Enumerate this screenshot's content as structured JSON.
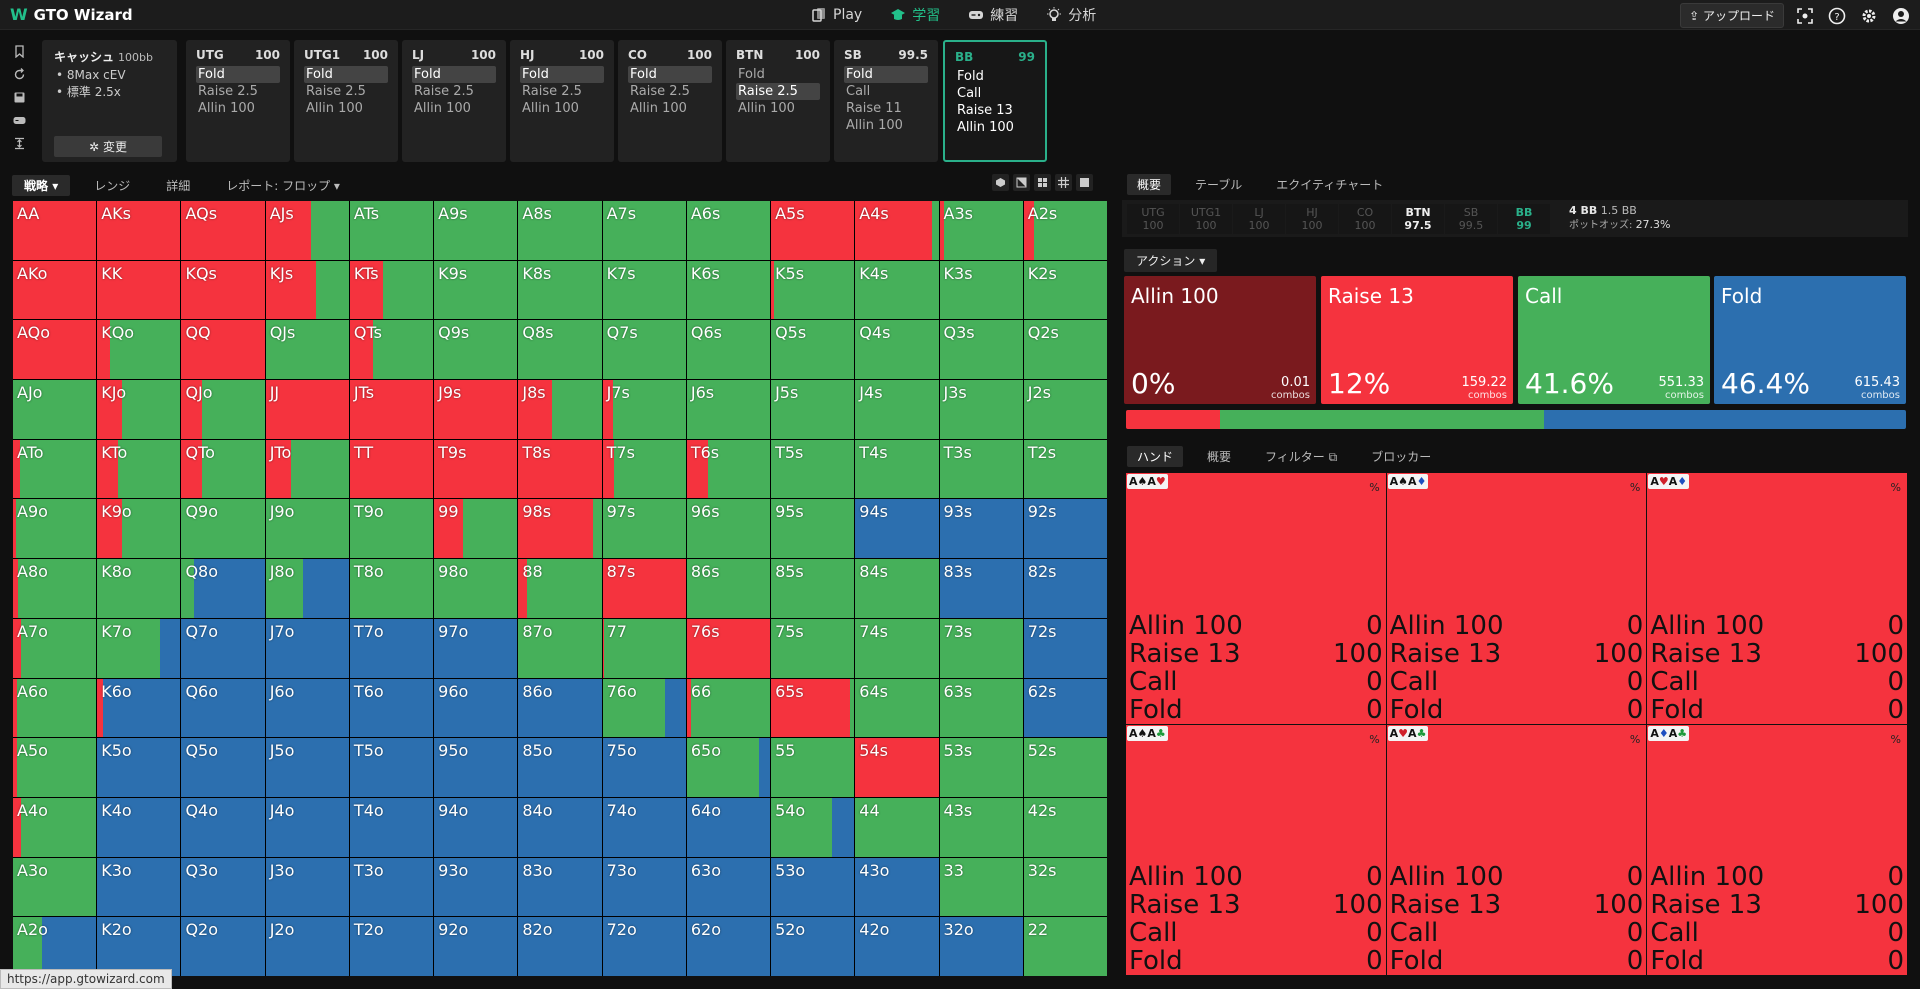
{
  "topbar": {
    "app_name": "GTO Wizard",
    "nav": [
      "Play",
      "学習",
      "練習",
      "分析"
    ],
    "upload_label": "アップロード"
  },
  "config": {
    "title": "キャッシュ",
    "stack": "100bb",
    "items": [
      "8Max cEV",
      "標準 2.5x"
    ],
    "change_label": "変更"
  },
  "positions": [
    {
      "name": "UTG",
      "stack": "100",
      "actions": [
        "Fold",
        "Raise 2.5",
        "Allin 100"
      ],
      "selected": 0
    },
    {
      "name": "UTG1",
      "stack": "100",
      "actions": [
        "Fold",
        "Raise 2.5",
        "Allin 100"
      ],
      "selected": 0
    },
    {
      "name": "LJ",
      "stack": "100",
      "actions": [
        "Fold",
        "Raise 2.5",
        "Allin 100"
      ],
      "selected": 0
    },
    {
      "name": "HJ",
      "stack": "100",
      "actions": [
        "Fold",
        "Raise 2.5",
        "Allin 100"
      ],
      "selected": 0
    },
    {
      "name": "CO",
      "stack": "100",
      "actions": [
        "Fold",
        "Raise 2.5",
        "Allin 100"
      ],
      "selected": 0
    },
    {
      "name": "BTN",
      "stack": "100",
      "actions": [
        "Fold",
        "Raise 2.5",
        "Allin 100"
      ],
      "selected": 1
    },
    {
      "name": "SB",
      "stack": "99.5",
      "actions": [
        "Fold",
        "Call",
        "Raise 11",
        "Allin 100"
      ],
      "selected": 0
    },
    {
      "name": "BB",
      "stack": "99",
      "actions": [
        "Fold",
        "Call",
        "Raise 13",
        "Allin 100"
      ],
      "selected": -1
    }
  ],
  "left_tabs": [
    "戦略",
    "レンジ",
    "詳細",
    "レポート: フロップ"
  ],
  "colors": {
    "raise": "#f5333e",
    "call": "#46b05a",
    "fold": "#2c6faf",
    "allin": "#7a1a1e"
  },
  "hands": [
    [
      "AA",
      "AKs",
      "AQs",
      "AJs",
      "ATs",
      "A9s",
      "A8s",
      "A7s",
      "A6s",
      "A5s",
      "A4s",
      "A3s",
      "A2s"
    ],
    [
      "AKo",
      "KK",
      "KQs",
      "KJs",
      "KTs",
      "K9s",
      "K8s",
      "K7s",
      "K6s",
      "K5s",
      "K4s",
      "K3s",
      "K2s"
    ],
    [
      "AQo",
      "KQo",
      "QQ",
      "QJs",
      "QTs",
      "Q9s",
      "Q8s",
      "Q7s",
      "Q6s",
      "Q5s",
      "Q4s",
      "Q3s",
      "Q2s"
    ],
    [
      "AJo",
      "KJo",
      "QJo",
      "JJ",
      "JTs",
      "J9s",
      "J8s",
      "J7s",
      "J6s",
      "J5s",
      "J4s",
      "J3s",
      "J2s"
    ],
    [
      "ATo",
      "KTo",
      "QTo",
      "JTo",
      "TT",
      "T9s",
      "T8s",
      "T7s",
      "T6s",
      "T5s",
      "T4s",
      "T3s",
      "T2s"
    ],
    [
      "A9o",
      "K9o",
      "Q9o",
      "J9o",
      "T9o",
      "99",
      "98s",
      "97s",
      "96s",
      "95s",
      "94s",
      "93s",
      "92s"
    ],
    [
      "A8o",
      "K8o",
      "Q8o",
      "J8o",
      "T8o",
      "98o",
      "88",
      "87s",
      "86s",
      "85s",
      "84s",
      "83s",
      "82s"
    ],
    [
      "A7o",
      "K7o",
      "Q7o",
      "J7o",
      "T7o",
      "97o",
      "87o",
      "77",
      "76s",
      "75s",
      "74s",
      "73s",
      "72s"
    ],
    [
      "A6o",
      "K6o",
      "Q6o",
      "J6o",
      "T6o",
      "96o",
      "86o",
      "76o",
      "66",
      "65s",
      "64s",
      "63s",
      "62s"
    ],
    [
      "A5o",
      "K5o",
      "Q5o",
      "J5o",
      "T5o",
      "95o",
      "85o",
      "75o",
      "65o",
      "55",
      "54s",
      "53s",
      "52s"
    ],
    [
      "A4o",
      "K4o",
      "Q4o",
      "J4o",
      "T4o",
      "94o",
      "84o",
      "74o",
      "64o",
      "54o",
      "44",
      "43s",
      "42s"
    ],
    [
      "A3o",
      "K3o",
      "Q3o",
      "J3o",
      "T3o",
      "93o",
      "83o",
      "73o",
      "63o",
      "53o",
      "43o",
      "33",
      "32s"
    ],
    [
      "A2o",
      "K2o",
      "Q2o",
      "J2o",
      "T2o",
      "92o",
      "82o",
      "72o",
      "62o",
      "52o",
      "42o",
      "32o",
      "22"
    ]
  ],
  "strategy": [
    [
      [
        100,
        0,
        0
      ],
      [
        100,
        0,
        0
      ],
      [
        100,
        0,
        0
      ],
      [
        55,
        45,
        0
      ],
      [
        0,
        100,
        0
      ],
      [
        0,
        100,
        0
      ],
      [
        0,
        100,
        0
      ],
      [
        0,
        100,
        0
      ],
      [
        0,
        100,
        0
      ],
      [
        100,
        0,
        0
      ],
      [
        92,
        8,
        0
      ],
      [
        5,
        95,
        0
      ],
      [
        12,
        88,
        0
      ]
    ],
    [
      [
        100,
        0,
        0
      ],
      [
        100,
        0,
        0
      ],
      [
        100,
        0,
        0
      ],
      [
        60,
        40,
        0
      ],
      [
        40,
        60,
        0
      ],
      [
        0,
        100,
        0
      ],
      [
        0,
        100,
        0
      ],
      [
        0,
        100,
        0
      ],
      [
        0,
        100,
        0
      ],
      [
        3,
        97,
        0
      ],
      [
        0,
        100,
        0
      ],
      [
        0,
        100,
        0
      ],
      [
        0,
        100,
        0
      ]
    ],
    [
      [
        100,
        0,
        0
      ],
      [
        15,
        85,
        0
      ],
      [
        100,
        0,
        0
      ],
      [
        0,
        100,
        0
      ],
      [
        28,
        72,
        0
      ],
      [
        0,
        100,
        0
      ],
      [
        0,
        100,
        0
      ],
      [
        0,
        100,
        0
      ],
      [
        0,
        100,
        0
      ],
      [
        0,
        100,
        0
      ],
      [
        0,
        100,
        0
      ],
      [
        0,
        100,
        0
      ],
      [
        0,
        100,
        0
      ]
    ],
    [
      [
        0,
        100,
        0
      ],
      [
        30,
        70,
        0
      ],
      [
        25,
        75,
        0
      ],
      [
        100,
        0,
        0
      ],
      [
        100,
        0,
        0
      ],
      [
        100,
        0,
        0
      ],
      [
        40,
        60,
        0
      ],
      [
        12,
        88,
        0
      ],
      [
        0,
        100,
        0
      ],
      [
        0,
        100,
        0
      ],
      [
        0,
        100,
        0
      ],
      [
        0,
        100,
        0
      ],
      [
        0,
        100,
        0
      ]
    ],
    [
      [
        8,
        92,
        0
      ],
      [
        25,
        75,
        0
      ],
      [
        25,
        75,
        0
      ],
      [
        30,
        70,
        0
      ],
      [
        100,
        0,
        0
      ],
      [
        100,
        0,
        0
      ],
      [
        100,
        0,
        0
      ],
      [
        14,
        86,
        0
      ],
      [
        26,
        74,
        0
      ],
      [
        0,
        100,
        0
      ],
      [
        0,
        100,
        0
      ],
      [
        0,
        100,
        0
      ],
      [
        0,
        100,
        0
      ]
    ],
    [
      [
        4,
        96,
        0
      ],
      [
        30,
        70,
        0
      ],
      [
        0,
        100,
        0
      ],
      [
        0,
        100,
        0
      ],
      [
        0,
        100,
        0
      ],
      [
        35,
        65,
        0
      ],
      [
        90,
        10,
        0
      ],
      [
        0,
        100,
        0
      ],
      [
        0,
        100,
        0
      ],
      [
        0,
        100,
        0
      ],
      [
        0,
        0,
        100
      ],
      [
        0,
        0,
        100
      ],
      [
        0,
        0,
        100
      ]
    ],
    [
      [
        6,
        94,
        0
      ],
      [
        0,
        100,
        0
      ],
      [
        0,
        15,
        85
      ],
      [
        0,
        45,
        55
      ],
      [
        0,
        100,
        0
      ],
      [
        0,
        100,
        0
      ],
      [
        10,
        90,
        0
      ],
      [
        100,
        0,
        0
      ],
      [
        0,
        100,
        0
      ],
      [
        0,
        100,
        0
      ],
      [
        0,
        100,
        0
      ],
      [
        0,
        0,
        100
      ],
      [
        0,
        0,
        100
      ]
    ],
    [
      [
        10,
        90,
        0
      ],
      [
        0,
        75,
        25
      ],
      [
        0,
        0,
        100
      ],
      [
        0,
        0,
        100
      ],
      [
        0,
        0,
        100
      ],
      [
        0,
        0,
        100
      ],
      [
        0,
        100,
        0
      ],
      [
        2,
        98,
        0
      ],
      [
        100,
        0,
        0
      ],
      [
        0,
        100,
        0
      ],
      [
        0,
        100,
        0
      ],
      [
        0,
        100,
        0
      ],
      [
        0,
        0,
        100
      ]
    ],
    [
      [
        5,
        95,
        0
      ],
      [
        7,
        0,
        93
      ],
      [
        0,
        0,
        100
      ],
      [
        0,
        0,
        100
      ],
      [
        0,
        0,
        100
      ],
      [
        0,
        0,
        100
      ],
      [
        0,
        0,
        100
      ],
      [
        0,
        75,
        25
      ],
      [
        5,
        95,
        0
      ],
      [
        95,
        5,
        0
      ],
      [
        0,
        100,
        0
      ],
      [
        0,
        100,
        0
      ],
      [
        0,
        0,
        100
      ]
    ],
    [
      [
        5,
        95,
        0
      ],
      [
        0,
        0,
        100
      ],
      [
        0,
        0,
        100
      ],
      [
        0,
        0,
        100
      ],
      [
        0,
        0,
        100
      ],
      [
        0,
        0,
        100
      ],
      [
        0,
        0,
        100
      ],
      [
        0,
        0,
        100
      ],
      [
        0,
        87,
        13
      ],
      [
        0,
        100,
        0
      ],
      [
        100,
        0,
        0
      ],
      [
        0,
        100,
        0
      ],
      [
        0,
        100,
        0
      ]
    ],
    [
      [
        10,
        90,
        0
      ],
      [
        0,
        0,
        100
      ],
      [
        0,
        0,
        100
      ],
      [
        0,
        0,
        100
      ],
      [
        0,
        0,
        100
      ],
      [
        0,
        0,
        100
      ],
      [
        0,
        0,
        100
      ],
      [
        0,
        0,
        100
      ],
      [
        0,
        0,
        100
      ],
      [
        0,
        73,
        27
      ],
      [
        0,
        100,
        0
      ],
      [
        0,
        100,
        0
      ],
      [
        0,
        100,
        0
      ]
    ],
    [
      [
        0,
        100,
        0
      ],
      [
        0,
        0,
        100
      ],
      [
        0,
        0,
        100
      ],
      [
        0,
        0,
        100
      ],
      [
        0,
        0,
        100
      ],
      [
        0,
        0,
        100
      ],
      [
        0,
        0,
        100
      ],
      [
        0,
        0,
        100
      ],
      [
        0,
        0,
        100
      ],
      [
        0,
        0,
        100
      ],
      [
        0,
        0,
        100
      ],
      [
        0,
        100,
        0
      ],
      [
        0,
        100,
        0
      ]
    ],
    [
      [
        0,
        35,
        65
      ],
      [
        0,
        0,
        100
      ],
      [
        0,
        0,
        100
      ],
      [
        0,
        0,
        100
      ],
      [
        0,
        0,
        100
      ],
      [
        0,
        0,
        100
      ],
      [
        0,
        0,
        100
      ],
      [
        0,
        0,
        100
      ],
      [
        0,
        0,
        100
      ],
      [
        0,
        0,
        100
      ],
      [
        0,
        0,
        100
      ],
      [
        0,
        0,
        100
      ],
      [
        0,
        100,
        0
      ]
    ]
  ],
  "right_tabs": [
    "概要",
    "テーブル",
    "エクイティチャート"
  ],
  "pos_bar": [
    {
      "name": "UTG",
      "stack": "100",
      "state": "folded"
    },
    {
      "name": "UTG1",
      "stack": "100",
      "state": "folded"
    },
    {
      "name": "LJ",
      "stack": "100",
      "state": "folded"
    },
    {
      "name": "HJ",
      "stack": "100",
      "state": "folded"
    },
    {
      "name": "CO",
      "stack": "100",
      "state": "folded"
    },
    {
      "name": "BTN",
      "stack": "97.5",
      "state": "active"
    },
    {
      "name": "SB",
      "stack": "99.5",
      "state": "folded"
    },
    {
      "name": "BB",
      "stack": "99",
      "state": "current"
    }
  ],
  "pot": {
    "bb": "4 BB",
    "blinds": "1.5 BB",
    "odds_label": "ポットオッズ:",
    "odds": "27.3%"
  },
  "action_dropdown": "アクション",
  "actions": [
    {
      "name": "Allin 100",
      "pct": "0%",
      "combos": "0.01",
      "color": "#7a1a1e",
      "frac": 0
    },
    {
      "name": "Raise 13",
      "pct": "12%",
      "combos": "159.22",
      "color": "#f5333e",
      "frac": 12
    },
    {
      "name": "Call",
      "pct": "41.6%",
      "combos": "551.33",
      "color": "#46b05a",
      "frac": 41.6
    },
    {
      "name": "Fold",
      "pct": "46.4%",
      "combos": "615.43",
      "color": "#2c6faf",
      "frac": 46.4
    }
  ],
  "combos_label": "combos",
  "hand_tabs": [
    "ハンド",
    "概要",
    "フィルター",
    "ブロッカー"
  ],
  "combos_detail": [
    {
      "cards": [
        {
          "r": "A",
          "s": "♠",
          "c": "#111"
        },
        {
          "r": "A",
          "s": "♥",
          "c": "#d0202a"
        }
      ],
      "rows": [
        [
          "Allin 100",
          "0"
        ],
        [
          "Raise 13",
          "100"
        ],
        [
          "Call",
          "0"
        ],
        [
          "Fold",
          "0"
        ]
      ]
    },
    {
      "cards": [
        {
          "r": "A",
          "s": "♠",
          "c": "#111"
        },
        {
          "r": "A",
          "s": "♦",
          "c": "#1e4fc0"
        }
      ],
      "rows": [
        [
          "Allin 100",
          "0"
        ],
        [
          "Raise 13",
          "100"
        ],
        [
          "Call",
          "0"
        ],
        [
          "Fold",
          "0"
        ]
      ]
    },
    {
      "cards": [
        {
          "r": "A",
          "s": "♥",
          "c": "#d0202a"
        },
        {
          "r": "A",
          "s": "♦",
          "c": "#1e4fc0"
        }
      ],
      "rows": [
        [
          "Allin 100",
          "0"
        ],
        [
          "Raise 13",
          "100"
        ],
        [
          "Call",
          "0"
        ],
        [
          "Fold",
          "0"
        ]
      ]
    },
    {
      "cards": [
        {
          "r": "A",
          "s": "♠",
          "c": "#111"
        },
        {
          "r": "A",
          "s": "♣",
          "c": "#1d9a3a"
        }
      ],
      "rows": [
        [
          "Allin 100",
          "0"
        ],
        [
          "Raise 13",
          "100"
        ],
        [
          "Call",
          "0"
        ],
        [
          "Fold",
          "0"
        ]
      ]
    },
    {
      "cards": [
        {
          "r": "A",
          "s": "♥",
          "c": "#d0202a"
        },
        {
          "r": "A",
          "s": "♣",
          "c": "#1d9a3a"
        }
      ],
      "rows": [
        [
          "Allin 100",
          "0"
        ],
        [
          "Raise 13",
          "100"
        ],
        [
          "Call",
          "0"
        ],
        [
          "Fold",
          "0"
        ]
      ]
    },
    {
      "cards": [
        {
          "r": "A",
          "s": "♦",
          "c": "#1e4fc0"
        },
        {
          "r": "A",
          "s": "♣",
          "c": "#1d9a3a"
        }
      ],
      "rows": [
        [
          "Allin 100",
          "0"
        ],
        [
          "Raise 13",
          "100"
        ],
        [
          "Call",
          "0"
        ],
        [
          "Fold",
          "0"
        ]
      ]
    }
  ],
  "pct_label": "%",
  "status_url": "https://app.gtowizard.com"
}
